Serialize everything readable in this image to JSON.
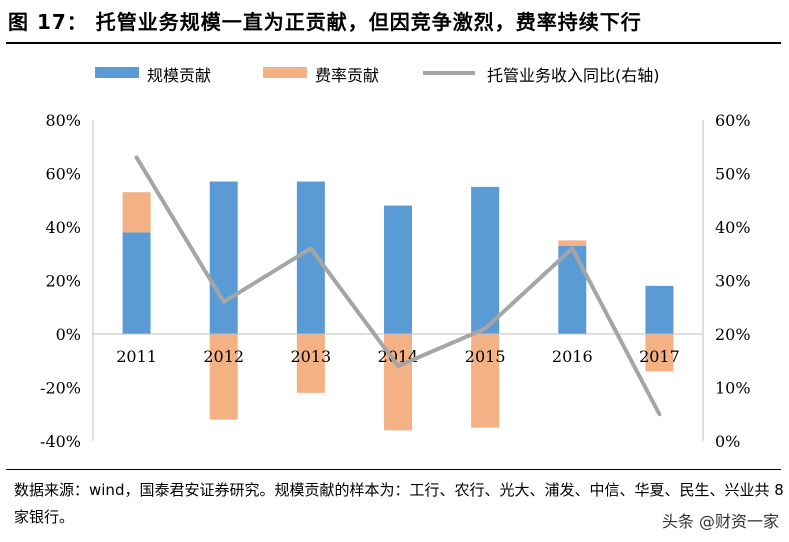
{
  "header": {
    "title": "图 17：  托管业务规模一直为正贡献，但因竞争激烈，费率持续下行"
  },
  "legend": {
    "items": [
      {
        "label": "规模贡献"
      },
      {
        "label": "费率贡献"
      },
      {
        "label": "托管业务收入同比(右轴)"
      }
    ]
  },
  "footer": {
    "source": "数据来源：wind，国泰君安证券研究。规模贡献的样本为：工行、农行、光大、浦发、中信、华夏、民生、兴业共 8 家银行。",
    "watermark": "头条 @财资一家"
  },
  "colors": {
    "scale": "#5B9BD5",
    "fee": "#F4B183",
    "line": "#A5A5A5"
  },
  "chart_data": {
    "type": "bar",
    "categories": [
      "2011",
      "2012",
      "2013",
      "2014",
      "2015",
      "2016",
      "2017"
    ],
    "series": [
      {
        "name": "规模贡献",
        "type": "bar",
        "axis": "left",
        "values": [
          38,
          57,
          57,
          48,
          55,
          33,
          18
        ]
      },
      {
        "name": "费率贡献",
        "type": "bar",
        "axis": "left",
        "values": [
          15,
          -32,
          -22,
          -36,
          -35,
          2,
          -14
        ]
      },
      {
        "name": "托管业务收入同比(右轴)",
        "type": "line",
        "axis": "right",
        "values": [
          53,
          26,
          36,
          14,
          21,
          36,
          5
        ]
      }
    ],
    "y_left": {
      "lim": [
        -40,
        80
      ],
      "ticks": [
        -40,
        -20,
        0,
        20,
        40,
        60,
        80
      ],
      "tick_labels": [
        "-40%",
        "-20%",
        "0%",
        "20%",
        "40%",
        "60%",
        "80%"
      ]
    },
    "y_right": {
      "lim": [
        0,
        60
      ],
      "ticks": [
        0,
        10,
        20,
        30,
        40,
        50,
        60
      ],
      "tick_labels": [
        "0%",
        "10%",
        "20%",
        "30%",
        "40%",
        "50%",
        "60%"
      ]
    },
    "grid": false,
    "legend_position": "top"
  }
}
